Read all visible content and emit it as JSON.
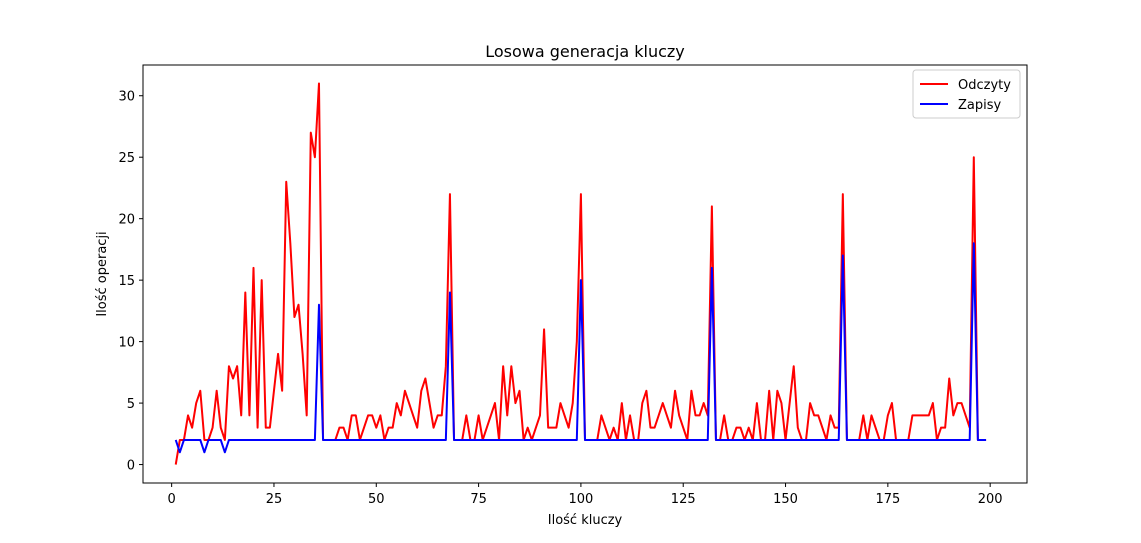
{
  "chart_data": {
    "type": "line",
    "title": "Losowa generacja kluczy",
    "xlabel": "Ilość kluczy",
    "ylabel": "Ilość operacji",
    "xlim": [
      -7,
      209
    ],
    "ylim": [
      -1.5,
      32.5
    ],
    "xticks": [
      0,
      25,
      50,
      75,
      100,
      125,
      150,
      175,
      200
    ],
    "yticks": [
      0,
      5,
      10,
      15,
      20,
      25,
      30
    ],
    "grid": false,
    "legend_position": "top-right",
    "x_start": 1,
    "series": [
      {
        "name": "Odczyty",
        "color": "#ff0000",
        "values": [
          0,
          2,
          2,
          4,
          3,
          5,
          6,
          2,
          2,
          3,
          6,
          3,
          2,
          8,
          7,
          8,
          4,
          14,
          4,
          16,
          3,
          15,
          3,
          3,
          6,
          9,
          6,
          23,
          18,
          12,
          13,
          9,
          4,
          27,
          25,
          31,
          2,
          2,
          2,
          2,
          3,
          3,
          2,
          4,
          4,
          2,
          3,
          4,
          4,
          3,
          4,
          2,
          3,
          3,
          5,
          4,
          6,
          5,
          4,
          3,
          6,
          7,
          5,
          3,
          4,
          4,
          8,
          22,
          2,
          2,
          2,
          4,
          2,
          2,
          4,
          2,
          3,
          4,
          5,
          2,
          8,
          4,
          8,
          5,
          6,
          2,
          3,
          2,
          3,
          4,
          11,
          3,
          3,
          3,
          5,
          4,
          3,
          5,
          10,
          22,
          2,
          2,
          2,
          2,
          4,
          3,
          2,
          3,
          2,
          5,
          2,
          4,
          2,
          2,
          5,
          6,
          3,
          3,
          4,
          5,
          4,
          3,
          6,
          4,
          3,
          2,
          6,
          4,
          4,
          5,
          4,
          21,
          2,
          2,
          4,
          2,
          2,
          3,
          3,
          2,
          3,
          2,
          5,
          2,
          2,
          6,
          2,
          6,
          5,
          2,
          5,
          8,
          3,
          2,
          2,
          5,
          4,
          4,
          3,
          2,
          4,
          3,
          3,
          22,
          2,
          2,
          2,
          2,
          4,
          2,
          4,
          3,
          2,
          2,
          4,
          5,
          2,
          2,
          2,
          2,
          4,
          4,
          4,
          4,
          4,
          5,
          2,
          3,
          3,
          7,
          4,
          5,
          5,
          4,
          3,
          25,
          2,
          2,
          2
        ]
      },
      {
        "name": "Zapisy",
        "color": "#0000ff",
        "values": [
          2,
          1,
          2,
          2,
          2,
          2,
          2,
          1,
          2,
          2,
          2,
          2,
          1,
          2,
          2,
          2,
          2,
          2,
          2,
          2,
          2,
          2,
          2,
          2,
          2,
          2,
          2,
          2,
          2,
          2,
          2,
          2,
          2,
          2,
          2,
          13,
          2,
          2,
          2,
          2,
          2,
          2,
          2,
          2,
          2,
          2,
          2,
          2,
          2,
          2,
          2,
          2,
          2,
          2,
          2,
          2,
          2,
          2,
          2,
          2,
          2,
          2,
          2,
          2,
          2,
          2,
          2,
          14,
          2,
          2,
          2,
          2,
          2,
          2,
          2,
          2,
          2,
          2,
          2,
          2,
          2,
          2,
          2,
          2,
          2,
          2,
          2,
          2,
          2,
          2,
          2,
          2,
          2,
          2,
          2,
          2,
          2,
          2,
          2,
          15,
          2,
          2,
          2,
          2,
          2,
          2,
          2,
          2,
          2,
          2,
          2,
          2,
          2,
          2,
          2,
          2,
          2,
          2,
          2,
          2,
          2,
          2,
          2,
          2,
          2,
          2,
          2,
          2,
          2,
          2,
          2,
          16,
          2,
          2,
          2,
          2,
          2,
          2,
          2,
          2,
          2,
          2,
          2,
          2,
          2,
          2,
          2,
          2,
          2,
          2,
          2,
          2,
          2,
          2,
          2,
          2,
          2,
          2,
          2,
          2,
          2,
          2,
          2,
          17,
          2,
          2,
          2,
          2,
          2,
          2,
          2,
          2,
          2,
          2,
          2,
          2,
          2,
          2,
          2,
          2,
          2,
          2,
          2,
          2,
          2,
          2,
          2,
          2,
          2,
          2,
          2,
          2,
          2,
          2,
          2,
          18,
          2,
          2,
          2
        ]
      }
    ]
  }
}
